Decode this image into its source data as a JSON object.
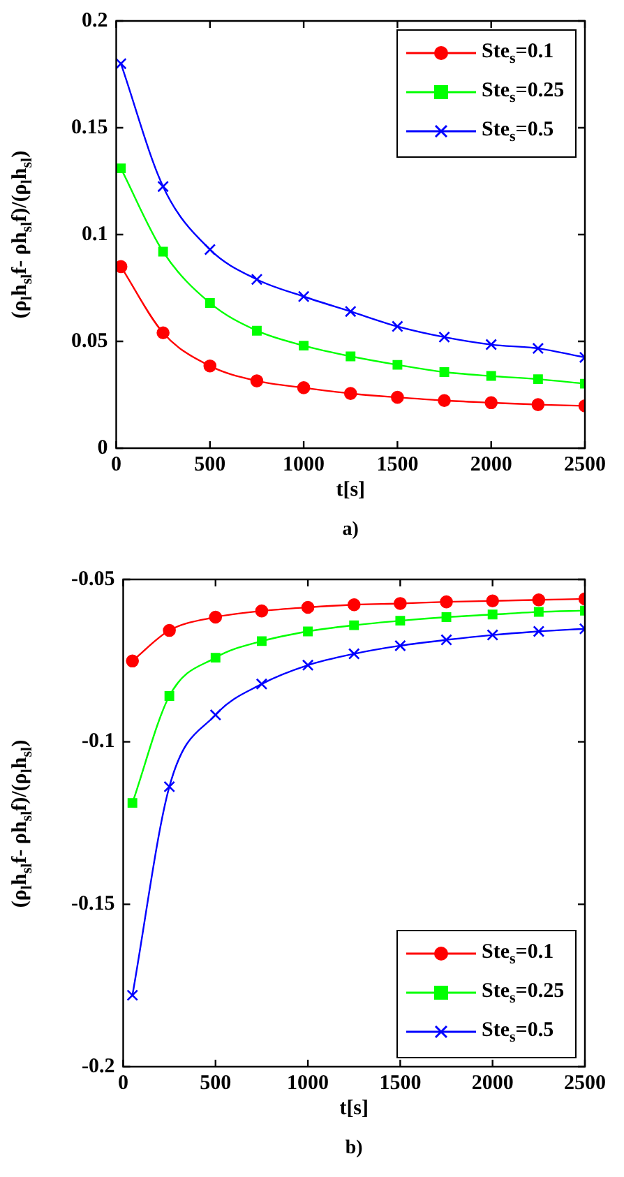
{
  "chart_data": [
    {
      "type": "line",
      "xlabel": "t[s]",
      "ylabel": "(ρ$_{l}$h$_{sl}$f- ρh$_{sl}$f)/(ρ$_{l}$h$_{sl}$)",
      "annotations": [
        "a)"
      ],
      "x": [
        25,
        250,
        500,
        750,
        1000,
        1250,
        1500,
        1750,
        2000,
        2250,
        2500
      ],
      "xlim": [
        0,
        2500
      ],
      "xticks": [
        0,
        500,
        1000,
        1500,
        2000,
        2500
      ],
      "ylim": [
        0,
        0.2
      ],
      "yticks": [
        0,
        0.05,
        0.1,
        0.15,
        0.2
      ],
      "grid": false,
      "legend": "top right",
      "series": [
        {
          "name": "Ste$_{s}$=0.1",
          "color": "#ff0000",
          "marker": "circle",
          "values": [
            0.085,
            0.054,
            0.0385,
            0.0315,
            0.0283,
            0.0256,
            0.0238,
            0.0223,
            0.0213,
            0.0204,
            0.0198
          ]
        },
        {
          "name": "Ste$_{s}$=0.25",
          "color": "#00ff00",
          "marker": "square",
          "values": [
            0.131,
            0.092,
            0.068,
            0.055,
            0.048,
            0.043,
            0.039,
            0.0356,
            0.0338,
            0.0323,
            0.0302
          ]
        },
        {
          "name": "Ste$_{s}$=0.5",
          "color": "#0000ff",
          "marker": "cross",
          "values": [
            0.18,
            0.1225,
            0.093,
            0.079,
            0.071,
            0.064,
            0.057,
            0.052,
            0.0485,
            0.0467,
            0.0425
          ]
        }
      ]
    },
    {
      "type": "line",
      "xlabel": "t[s]",
      "ylabel": "(ρ$_{l}$h$_{sl}$f- ρh$_{sl}$f)/(ρ$_{l}$h$_{sl}$)",
      "annotations": [
        "b)"
      ],
      "x": [
        50,
        250,
        500,
        750,
        1000,
        1250,
        1500,
        1750,
        2000,
        2250,
        2500
      ],
      "xlim": [
        0,
        2500
      ],
      "xticks": [
        0,
        500,
        1000,
        1500,
        2000,
        2500
      ],
      "ylim": [
        -0.2,
        -0.05
      ],
      "yticks": [
        -0.2,
        -0.15,
        -0.1,
        -0.05
      ],
      "grid": false,
      "legend": "bottom right",
      "series": [
        {
          "name": "Ste$_{s}$=0.1",
          "color": "#ff0000",
          "marker": "circle",
          "values": [
            -0.0751,
            -0.0657,
            -0.0616,
            -0.0597,
            -0.0586,
            -0.0578,
            -0.0574,
            -0.0569,
            -0.0566,
            -0.0563,
            -0.056
          ]
        },
        {
          "name": "Ste$_{s}$=0.25",
          "color": "#00ff00",
          "marker": "square",
          "values": [
            -0.1188,
            -0.0859,
            -0.0741,
            -0.069,
            -0.066,
            -0.0641,
            -0.0627,
            -0.0616,
            -0.0608,
            -0.06,
            -0.0596
          ]
        },
        {
          "name": "Ste$_{s}$=0.5",
          "color": "#0000ff",
          "marker": "cross",
          "values": [
            -0.178,
            -0.1138,
            -0.0917,
            -0.0822,
            -0.0764,
            -0.0729,
            -0.0704,
            -0.0686,
            -0.0671,
            -0.066,
            -0.0652
          ]
        }
      ]
    }
  ]
}
